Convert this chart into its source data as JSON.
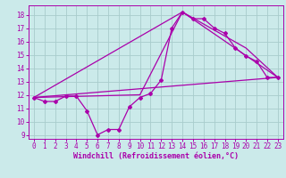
{
  "background_color": "#cbeaea",
  "grid_color": "#a8cccc",
  "line_color": "#aa00aa",
  "xlabel": "Windchill (Refroidissement éolien,°C)",
  "xlim": [
    -0.5,
    23.5
  ],
  "ylim": [
    8.7,
    18.7
  ],
  "yticks": [
    9,
    10,
    11,
    12,
    13,
    14,
    15,
    16,
    17,
    18
  ],
  "xticks": [
    0,
    1,
    2,
    3,
    4,
    5,
    6,
    7,
    8,
    9,
    10,
    11,
    12,
    13,
    14,
    15,
    16,
    17,
    18,
    19,
    20,
    21,
    22,
    23
  ],
  "series0": {
    "x": [
      0,
      1,
      2,
      3,
      4,
      5,
      6,
      7,
      8,
      9,
      10,
      11,
      12,
      13,
      14,
      15,
      16,
      17,
      18,
      19,
      20,
      21,
      22,
      23
    ],
    "y": [
      11.8,
      11.5,
      11.5,
      11.9,
      11.9,
      10.8,
      9.0,
      9.4,
      9.4,
      11.1,
      11.8,
      12.1,
      13.1,
      17.0,
      18.2,
      17.7,
      17.7,
      17.0,
      16.6,
      15.5,
      14.9,
      14.5,
      13.3,
      13.3
    ]
  },
  "series1": {
    "x": [
      0,
      10,
      14,
      23
    ],
    "y": [
      11.8,
      12.0,
      18.2,
      13.3
    ]
  },
  "series2": {
    "x": [
      0,
      14,
      20,
      23
    ],
    "y": [
      11.8,
      18.2,
      15.5,
      13.3
    ]
  },
  "series3": {
    "x": [
      0,
      23
    ],
    "y": [
      11.8,
      13.3
    ]
  },
  "tick_fontsize": 5.5,
  "xlabel_fontsize": 6.0
}
